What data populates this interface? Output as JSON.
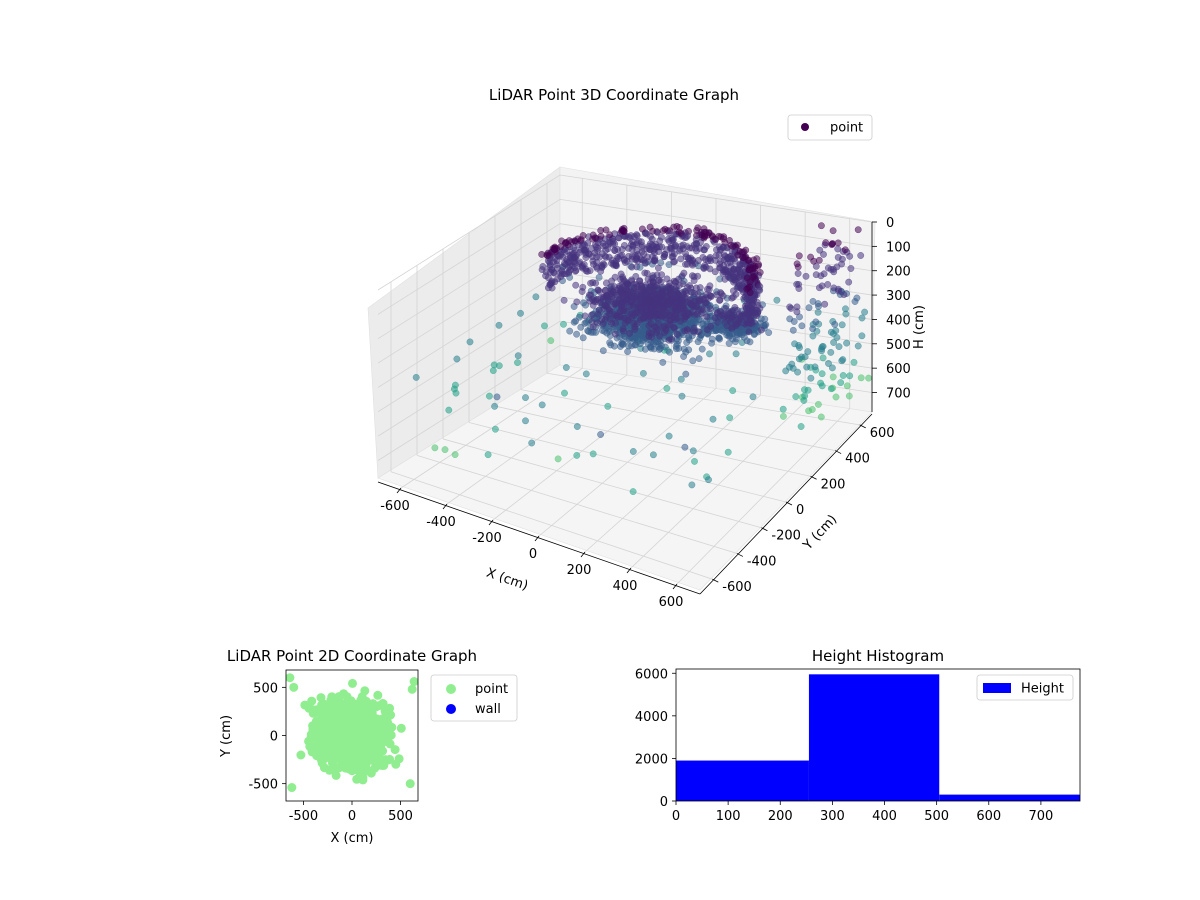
{
  "chart_data": [
    {
      "type": "scatter",
      "title": "LiDAR Point 3D Coordinate Graph",
      "projection": "3d",
      "xlabel": "X (cm)",
      "ylabel": "Y (cm)",
      "zlabel": "H (cm)",
      "xlim": [
        -700,
        700
      ],
      "ylim": [
        -700,
        700
      ],
      "zlim": [
        0,
        780
      ],
      "z_inverted": true,
      "x_ticks": [
        "-600",
        "-400",
        "-200",
        "0",
        "200",
        "400",
        "600"
      ],
      "y_ticks": [
        "-600",
        "-400",
        "-200",
        "0",
        "200",
        "400",
        "600"
      ],
      "z_ticks": [
        "0",
        "100",
        "200",
        "300",
        "400",
        "500",
        "600",
        "700"
      ],
      "grid": true,
      "legend": {
        "position": "upper-right",
        "entries": [
          "point"
        ]
      },
      "colormap": "viridis",
      "series": [
        {
          "name": "point",
          "color": "#440154"
        }
      ]
    },
    {
      "type": "scatter",
      "title": "LiDAR Point 2D Coordinate Graph",
      "xlabel": "X (cm)",
      "ylabel": "Y (cm)",
      "xlim": [
        -680,
        680
      ],
      "ylim": [
        -680,
        680
      ],
      "x_ticks": [
        "-500",
        "0",
        "500"
      ],
      "y_ticks": [
        "500",
        "0",
        "-500"
      ],
      "legend": {
        "position": "outside-right",
        "entries": [
          "point",
          "wall"
        ]
      },
      "series": [
        {
          "name": "point",
          "color": "#90ee90"
        },
        {
          "name": "wall",
          "color": "#0000ff"
        }
      ]
    },
    {
      "type": "bar",
      "title": "Height Histogram",
      "xlim": [
        0,
        775
      ],
      "ylim": [
        0,
        6200
      ],
      "x_ticks": [
        "0",
        "100",
        "200",
        "300",
        "400",
        "500",
        "600",
        "700"
      ],
      "y_ticks": [
        "0",
        "2000",
        "4000",
        "6000"
      ],
      "bins": [
        {
          "start": 0,
          "end": 255,
          "count": 1900
        },
        {
          "start": 255,
          "end": 505,
          "count": 5950
        },
        {
          "start": 505,
          "end": 775,
          "count": 300
        }
      ],
      "legend": {
        "position": "upper-right",
        "entries": [
          "Height"
        ]
      },
      "series": [
        {
          "name": "Height",
          "color": "#0000ff"
        }
      ]
    }
  ]
}
